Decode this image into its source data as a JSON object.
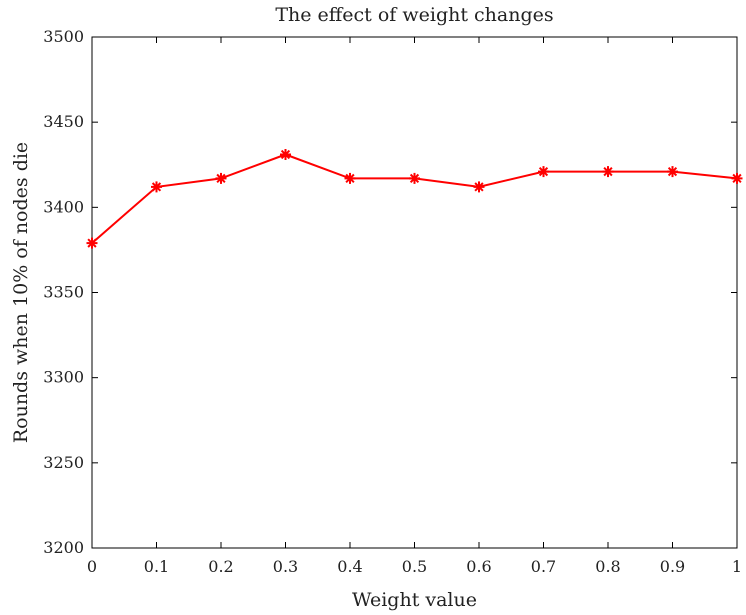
{
  "chart_data": {
    "type": "line",
    "title": "The effect of weight changes",
    "xlabel": "Weight value",
    "ylabel": "Rounds when 10% of nodes die",
    "xlim": [
      0,
      1
    ],
    "ylim": [
      3200,
      3500
    ],
    "xticks": [
      0,
      0.1,
      0.2,
      0.3,
      0.4,
      0.5,
      0.6,
      0.7,
      0.8,
      0.9,
      1
    ],
    "xtick_labels": [
      "0",
      "0.1",
      "0.2",
      "0.3",
      "0.4",
      "0.5",
      "0.6",
      "0.7",
      "0.8",
      "0.9",
      "1"
    ],
    "yticks": [
      3200,
      3250,
      3300,
      3350,
      3400,
      3450,
      3500
    ],
    "ytick_labels": [
      "3200",
      "3250",
      "3300",
      "3350",
      "3400",
      "3450",
      "3500"
    ],
    "grid": false,
    "series": [
      {
        "name": "Rounds",
        "color": "#ff0000",
        "marker": "asterisk",
        "x": [
          0,
          0.1,
          0.2,
          0.3,
          0.4,
          0.5,
          0.6,
          0.7,
          0.8,
          0.9,
          1
        ],
        "y": [
          3379,
          3412,
          3417,
          3431,
          3417,
          3417,
          3412,
          3421,
          3421,
          3421,
          3417
        ]
      }
    ]
  }
}
